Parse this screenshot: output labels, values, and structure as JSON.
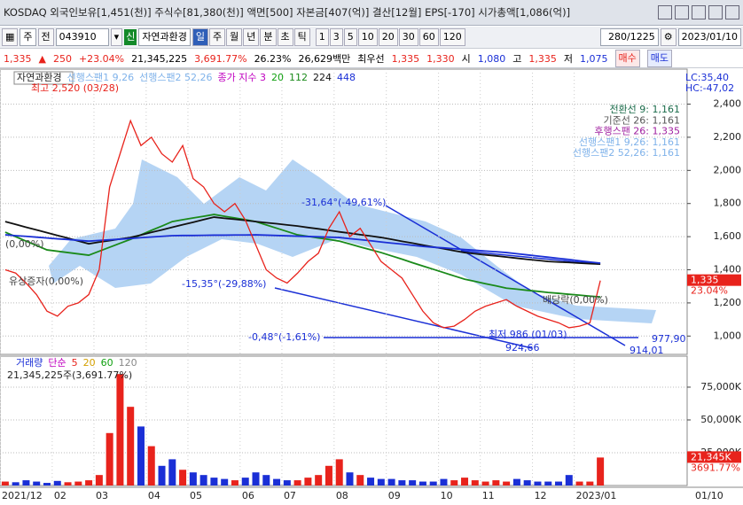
{
  "title_bar": {
    "text": "KOSDAQ 외국인보유[1,451(천)] 주식수[81,380(천)] 액면[500] 자본금[407(억)] 결산[12월] EPS[-170] 시가총액[1,086(억)]"
  },
  "toolbar": {
    "type_label": "주",
    "prefix": "전",
    "code": "043910",
    "badge": "신",
    "name": "자연과환경",
    "periods": [
      "일",
      "주",
      "월",
      "년",
      "분",
      "초",
      "틱"
    ],
    "numbers": [
      "1",
      "3",
      "5",
      "10",
      "20",
      "30",
      "60",
      "120"
    ],
    "count": "280/1225",
    "date": "2023/01/10"
  },
  "quote": {
    "price": "1,335",
    "change": "250",
    "rate": "+23.04%",
    "volume": "21,345,225",
    "vol_ratio": "3,691.77%",
    "turnover": "26.23%",
    "amount": "26,629백만",
    "best_label": "최우선",
    "ask": "1,335",
    "bid": "1,330",
    "open_label": "시",
    "open": "1,080",
    "high_label": "고",
    "high": "1,335",
    "low_label": "저",
    "low": "1,075",
    "buy": "매수",
    "sell": "매도"
  },
  "chart_data": [
    {
      "type": "line",
      "name_box": "자연과환경",
      "legend_extra": [
        {
          "text": "선행스팬1 9,26",
          "color": "#7fb2ea"
        },
        {
          "text": "선행스팬2 52,26",
          "color": "#7fb2ea"
        },
        {
          "text": "종가 지수 3",
          "color": "#c000c0"
        },
        {
          "text": "20",
          "color": "#10a010"
        }
      ],
      "categories": [
        null,
        null,
        null,
        null,
        null,
        null,
        null,
        null,
        null,
        null,
        null,
        null,
        null,
        null,
        null,
        null,
        null,
        null,
        null,
        null,
        null,
        null,
        null,
        null,
        null,
        null,
        null,
        null,
        null,
        null,
        null,
        null,
        null,
        null,
        null,
        null,
        null,
        null,
        null,
        null,
        null,
        null,
        null,
        null,
        null,
        null,
        null,
        null,
        null,
        null,
        null,
        null,
        null,
        null,
        null,
        null,
        null,
        null
      ],
      "series": [
        {
          "name": "112",
          "color": "#1a8a1a",
          "values": [
            1627,
            1600,
            1573,
            1547,
            1520,
            1512,
            1504,
            1496,
            1488,
            1512,
            1536,
            1560,
            1584,
            1611,
            1638,
            1664,
            1691,
            1702,
            1713,
            1723,
            1734,
            1723,
            1713,
            1702,
            1691,
            1671,
            1651,
            1631,
            1611,
            1602,
            1592,
            1583,
            1573,
            1556,
            1538,
            1521,
            1504,
            1484,
            1464,
            1443,
            1423,
            1403,
            1383,
            1363,
            1343,
            1330,
            1316,
            1303,
            1289,
            1283,
            1276,
            1270,
            1263,
            1258,
            1252,
            1247,
            1241,
            1236
          ]
        },
        {
          "name": "224",
          "color": "#111111",
          "values": [
            1691,
            1674,
            1657,
            1641,
            1624,
            1607,
            1591,
            1574,
            1557,
            1567,
            1576,
            1586,
            1595,
            1610,
            1626,
            1641,
            1657,
            1672,
            1687,
            1703,
            1718,
            1711,
            1705,
            1698,
            1691,
            1684,
            1678,
            1671,
            1664,
            1655,
            1647,
            1638,
            1629,
            1621,
            1612,
            1604,
            1595,
            1584,
            1572,
            1561,
            1549,
            1538,
            1527,
            1515,
            1504,
            1497,
            1490,
            1484,
            1477,
            1470,
            1463,
            1457,
            1450,
            1447,
            1444,
            1440,
            1437,
            1434
          ]
        },
        {
          "name": "448",
          "color": "#1a2fd6",
          "values": [
            1611,
            1606,
            1602,
            1597,
            1592,
            1587,
            1583,
            1578,
            1573,
            1577,
            1581,
            1585,
            1589,
            1594,
            1598,
            1602,
            1606,
            1607,
            1607,
            1608,
            1609,
            1609,
            1610,
            1610,
            1611,
            1609,
            1607,
            1605,
            1603,
            1601,
            1599,
            1597,
            1595,
            1588,
            1582,
            1575,
            1568,
            1561,
            1555,
            1548,
            1541,
            1536,
            1532,
            1527,
            1522,
            1518,
            1513,
            1509,
            1504,
            1497,
            1490,
            1483,
            1476,
            1469,
            1462,
            1454,
            1447,
            1440
          ]
        },
        {
          "name": "종가",
          "color": "#e8231c",
          "values": [
            1400,
            1380,
            1320,
            1250,
            1150,
            1120,
            1180,
            1200,
            1250,
            1400,
            1900,
            2100,
            2300,
            2150,
            2200,
            2100,
            2050,
            2150,
            1950,
            1900,
            1800,
            1750,
            1800,
            1700,
            1550,
            1400,
            1350,
            1320,
            1380,
            1450,
            1500,
            1650,
            1750,
            1600,
            1650,
            1550,
            1450,
            1400,
            1350,
            1250,
            1150,
            1080,
            1050,
            1060,
            1100,
            1150,
            1180,
            1200,
            1220,
            1180,
            1150,
            1120,
            1100,
            1080,
            1050,
            1060,
            1080,
            1335
          ]
        }
      ],
      "ylim": [
        900,
        2590
      ],
      "yticks": [
        {
          "value": 1000,
          "label": "1,000"
        },
        {
          "value": 1200,
          "label": "1,200"
        },
        {
          "value": 1400,
          "label": "1,400"
        },
        {
          "value": 1600,
          "label": "1,600"
        },
        {
          "value": 1800,
          "label": "1,800"
        },
        {
          "value": 2000,
          "label": "2,000"
        },
        {
          "value": 2200,
          "label": "2,200"
        },
        {
          "value": 2400,
          "label": "2,400"
        }
      ],
      "grid": true,
      "annotations": [
        "최고 2,520 (03/28)",
        "-31,64°(-49,61%)",
        "-15,35°(-29,88%)",
        "-0,48°(-1,61%)",
        "977,90",
        "924,66",
        "914,01",
        "배당락(0,00%)",
        "(0,00%)",
        "유상증자(0,00%)",
        "최저 986 (01/03)"
      ],
      "info": [
        "전환선 9: 1,161",
        "기준선 26: 1,161",
        "후행스팬 26: 1,335",
        "선행스팬1 9,26: 1,161",
        "선행스팬2 52,26: 1,161"
      ],
      "corner": [
        "LC:35,40",
        "HC:-47,02"
      ],
      "last_label": "1,335",
      "last_rate": "23.04%"
    },
    {
      "type": "bar",
      "title": "거래량",
      "legend_label": "단순",
      "legend_periods": [
        {
          "text": "5",
          "color": "#e8231c"
        },
        {
          "text": "20",
          "color": "#d4a000"
        },
        {
          "text": "60",
          "color": "#10a010"
        },
        {
          "text": "120",
          "color": "#888888"
        }
      ],
      "subtitle": "21,345,225주(3,691.77%)",
      "categories": [
        "2021/12",
        null,
        null,
        null,
        null,
        "02",
        null,
        null,
        null,
        "03",
        null,
        null,
        null,
        null,
        "04",
        null,
        null,
        null,
        "05",
        null,
        null,
        null,
        null,
        "06",
        null,
        null,
        null,
        "07",
        null,
        null,
        null,
        null,
        "08",
        null,
        null,
        null,
        null,
        "09",
        null,
        null,
        null,
        null,
        "10",
        null,
        null,
        null,
        "11",
        null,
        null,
        null,
        null,
        "12",
        null,
        null,
        null,
        "2023/01",
        null,
        null
      ],
      "x_end_label": "01/10",
      "values": [
        3000,
        2500,
        4000,
        3000,
        2000,
        3500,
        2500,
        3000,
        4000,
        8000,
        40000,
        85000,
        60000,
        45000,
        30000,
        15000,
        20000,
        12000,
        10000,
        8000,
        6000,
        5000,
        4000,
        6000,
        10000,
        8000,
        5000,
        4000,
        4000,
        6000,
        8000,
        15000,
        20000,
        10000,
        8000,
        6000,
        5000,
        5000,
        4000,
        4000,
        3000,
        3000,
        5000,
        4000,
        6000,
        4000,
        3000,
        4000,
        3000,
        5000,
        4000,
        3000,
        3000,
        3000,
        8000,
        3000,
        3000,
        21345
      ],
      "up_color": "#e8231c",
      "down_color": "#1a2fd6",
      "ylim": [
        0,
        96600
      ],
      "yticks": [
        {
          "value": 25000,
          "label": "25,000K"
        },
        {
          "value": 50000,
          "label": "50,000K"
        },
        {
          "value": 75000,
          "label": "75,000K"
        }
      ],
      "grid": true,
      "last_label": "21,345K",
      "last_rate": "3691.77%"
    }
  ]
}
